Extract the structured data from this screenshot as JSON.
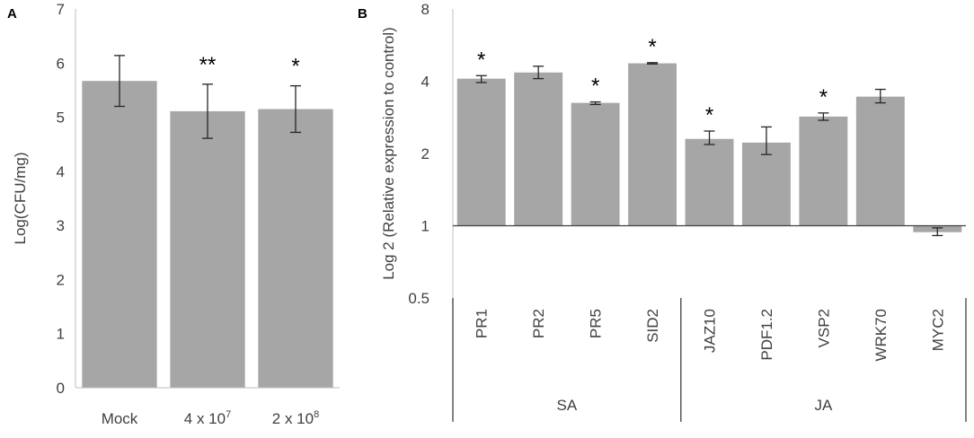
{
  "chart_data": [
    {
      "panel_label": "A",
      "type": "bar",
      "ylabel": "Log(CFU/mg)",
      "ylim": [
        0,
        7
      ],
      "yticks": [
        "0",
        "1",
        "2",
        "3",
        "4",
        "5",
        "6",
        "7"
      ],
      "categories": [
        {
          "base": "Mock",
          "sup": ""
        },
        {
          "base": "4 x 10",
          "sup": "7"
        },
        {
          "base": "2 x 10",
          "sup": "8"
        }
      ],
      "values": [
        5.67,
        5.11,
        5.15
      ],
      "errors": [
        0.47,
        0.5,
        0.43
      ],
      "significance": [
        "",
        "**",
        "*"
      ],
      "bar_color": "#a6a6a6",
      "grid": false
    },
    {
      "panel_label": "B",
      "type": "bar",
      "ylabel": "Log 2 (Relative expression to control)",
      "yscale": "log2",
      "ylim": [
        0.5,
        8
      ],
      "baseline": 1,
      "yticks": [
        "0.5",
        "1",
        "2",
        "4",
        "8"
      ],
      "yticks_values": [
        0.5,
        1,
        2,
        4,
        8
      ],
      "categories": [
        "PR1",
        "PR2",
        "PR5",
        "SID2",
        "JAZ10",
        "PDF1.2",
        "VSP2",
        "WRK70",
        "MYC2"
      ],
      "values": [
        4.1,
        4.35,
        3.25,
        4.75,
        2.3,
        2.22,
        2.85,
        3.45,
        0.94
      ],
      "error_low": [
        3.95,
        4.1,
        3.2,
        4.72,
        2.18,
        1.98,
        2.75,
        3.25,
        0.91
      ],
      "error_high": [
        4.22,
        4.62,
        3.28,
        4.78,
        2.48,
        2.58,
        2.95,
        3.7,
        0.98
      ],
      "significance": [
        "*",
        "",
        "*",
        "*",
        "*",
        "",
        "*",
        "",
        ""
      ],
      "groups": [
        {
          "label": "SA",
          "from": 0,
          "to": 3
        },
        {
          "label": "JA",
          "from": 4,
          "to": 8
        }
      ],
      "bar_color": "#a6a6a6",
      "grid": false
    }
  ]
}
